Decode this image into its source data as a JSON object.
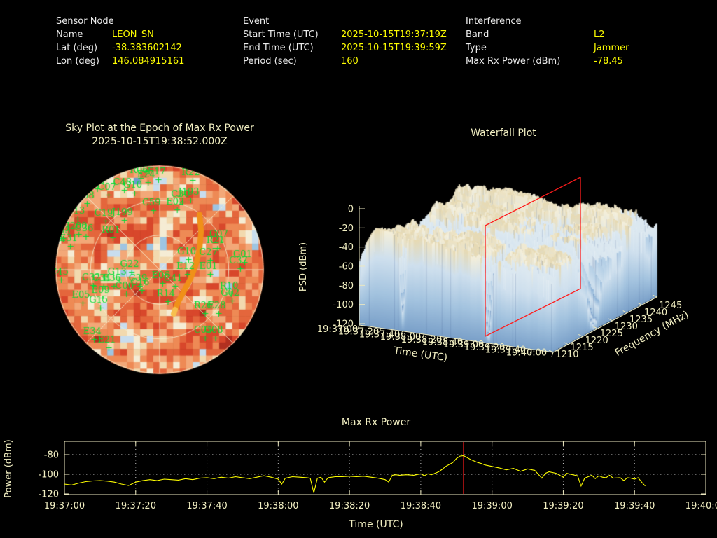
{
  "header": {
    "sensor": {
      "title": "Sensor Node",
      "rows": [
        {
          "label": "Name",
          "value": "LEON_SN"
        },
        {
          "label": "Lat (deg)",
          "value": "-38.383602142"
        },
        {
          "label": "Lon (deg)",
          "value": "146.084915161"
        }
      ]
    },
    "event": {
      "title": "Event",
      "rows": [
        {
          "label": "Start Time (UTC)",
          "value": "2025-10-15T19:37:19Z"
        },
        {
          "label": "End Time (UTC)",
          "value": "2025-10-15T19:39:59Z"
        },
        {
          "label": "Period (sec)",
          "value": "160"
        }
      ]
    },
    "interference": {
      "title": "Interference",
      "rows": [
        {
          "label": "Band",
          "value": "L2"
        },
        {
          "label": "Type",
          "value": "Jammer"
        },
        {
          "label": "Max Rx Power (dBm)",
          "value": "-78.45"
        }
      ]
    }
  },
  "colors": {
    "background": "#000000",
    "label_text": "#ebebeb",
    "value_text": "#fdfd00",
    "tick_text": "#f2efc2",
    "plot_border": "#ece8c0",
    "grid_dotted": "#c8c8c8",
    "series_line": "#fdfd00",
    "marker_red": "#ff1c1c",
    "satellite_green": "#00dc32",
    "track_orange": "#f09018",
    "track_end": "#f7bf4e",
    "sky_grid": "#f5efcf"
  },
  "chart_data": [
    {
      "type": "heatmap",
      "subtype": "polar_sky_plot",
      "title": "Sky Plot at the Epoch of Max Rx Power",
      "epoch": "2025-10-15T19:38:52.000Z",
      "elevation_rings": 3,
      "azimuth_spokes": 8,
      "palette": [
        "#b23020",
        "#d8472b",
        "#e4663c",
        "#ee8a55",
        "#f3a878",
        "#f2d9ae",
        "#f5ecd4",
        "#c8ddee",
        "#9ec5e2",
        "#6e9bcb",
        "#2d4f9e"
      ],
      "palette_thresholds": [
        0.1,
        0.3,
        0.45,
        0.58,
        0.68,
        0.76,
        0.83,
        0.89,
        0.95,
        0.985
      ],
      "satellites": [
        [
          "C25",
          -0.15,
          -1.0
        ],
        [
          "R06",
          -0.2,
          -0.93
        ],
        [
          "E17",
          -0.03,
          -0.92
        ],
        [
          "E24",
          -0.13,
          -0.89
        ],
        [
          "R22",
          0.3,
          -0.91
        ],
        [
          "C38",
          -0.62,
          -0.83
        ],
        [
          "C48",
          -0.36,
          -0.82
        ],
        [
          "G10",
          -0.26,
          -0.79
        ],
        [
          "C07",
          -0.51,
          -0.77
        ],
        [
          "J193",
          0.28,
          -0.72
        ],
        [
          "C30",
          0.2,
          -0.7
        ],
        [
          "C08",
          -0.72,
          -0.69
        ],
        [
          "E02",
          0.15,
          -0.63
        ],
        [
          "C59",
          -0.08,
          -0.62
        ],
        [
          "C13",
          -0.81,
          -0.54
        ],
        [
          "J199",
          -0.36,
          -0.53
        ],
        [
          "C19",
          -0.54,
          -0.52
        ],
        [
          "J200",
          -0.8,
          -0.39
        ],
        [
          "C36",
          -0.73,
          -0.37
        ],
        [
          "R01",
          -0.47,
          -0.36
        ],
        [
          "G03",
          -0.95,
          -0.35
        ],
        [
          "G07",
          0.57,
          -0.32
        ],
        [
          "E31",
          -0.88,
          -0.28
        ],
        [
          "R21",
          0.54,
          -0.26
        ],
        [
          "G10",
          0.26,
          -0.15
        ],
        [
          "C27",
          0.47,
          -0.14
        ],
        [
          "G01",
          0.8,
          -0.12
        ],
        [
          "C37",
          0.76,
          -0.06
        ],
        [
          "G22",
          -0.29,
          -0.03
        ],
        [
          "E12",
          0.25,
          -0.01
        ],
        [
          "E01",
          0.47,
          -0.01
        ],
        [
          "C45",
          -0.97,
          0.05
        ],
        [
          "G13",
          -0.41,
          0.05
        ],
        [
          "E06",
          0.01,
          0.08
        ],
        [
          "C32",
          -0.66,
          0.1
        ],
        [
          "C34",
          -0.56,
          0.11
        ],
        [
          "E36",
          -0.46,
          0.11
        ],
        [
          "C39",
          -0.21,
          0.11
        ],
        [
          "C41",
          0.13,
          0.11
        ],
        [
          "G16",
          -0.19,
          0.15
        ],
        [
          "C06",
          -0.34,
          0.18
        ],
        [
          "R10",
          0.67,
          0.18
        ],
        [
          "E09",
          -0.57,
          0.22
        ],
        [
          "G02",
          0.68,
          0.25
        ],
        [
          "R14",
          0.06,
          0.26
        ],
        [
          "E05",
          -0.76,
          0.27
        ],
        [
          "G15",
          -0.59,
          0.32
        ],
        [
          "R26",
          0.42,
          0.37
        ],
        [
          "E28",
          0.55,
          0.37
        ],
        [
          "C05",
          0.42,
          0.61
        ],
        [
          "G08",
          0.52,
          0.61
        ],
        [
          "E34",
          -0.65,
          0.62
        ],
        [
          "E21",
          -0.51,
          0.7
        ]
      ],
      "jammer_track": [
        [
          0.385,
          -0.53
        ],
        [
          0.4,
          -0.37
        ],
        [
          0.385,
          -0.2
        ],
        [
          0.35,
          -0.05
        ],
        [
          0.297,
          0.088
        ],
        [
          0.236,
          0.203
        ],
        [
          0.182,
          0.304
        ],
        [
          0.149,
          0.385
        ],
        [
          0.135,
          0.426
        ]
      ]
    },
    {
      "type": "area",
      "subtype": "3d_surface_waterfall",
      "title": "Waterfall Plot",
      "zlabel": "PSD (dBm)",
      "xlabel": "Time (UTC)",
      "ylabel": "Frequency (MHz)",
      "z_ticks_dbm": [
        0,
        -20,
        -40,
        -60,
        -80,
        -100,
        -120
      ],
      "x_ticks_time": [
        "19:37:00",
        "19:37:20",
        "19:37:40",
        "19:38:00",
        "19:38:20",
        "19:38:40",
        "19:39:00",
        "19:39:20",
        "19:39:40",
        "19:40:00"
      ],
      "y_ticks_mhz": [
        1210,
        1215,
        1220,
        1225,
        1230,
        1235,
        1240,
        1245
      ],
      "surface_psd_range_dbm": [
        -116,
        -18
      ],
      "slice_marker": {
        "time_utc": "19:38:52",
        "color": "#ff1c1c"
      },
      "surface_colors": {
        "top_high": [
          "#f5efd9",
          "#eee3c2",
          "#e8dab2",
          "#f2ead0"
        ],
        "mid": "#dde9f1",
        "low": "#b4cfe6",
        "lower": "#8fb4d8",
        "lowest": "#6f97c6",
        "face1": "#cfe0ee",
        "face2": "#a3c3df",
        "face3": "#7aa0c9"
      }
    },
    {
      "type": "line",
      "title": "Max Rx Power",
      "xlabel": "Time (UTC)",
      "ylabel": "Power (dBm)",
      "x_ticks": [
        "19:37:00",
        "19:37:20",
        "19:37:40",
        "19:38:00",
        "19:38:20",
        "19:38:40",
        "19:39:00",
        "19:39:20",
        "19:39:40",
        "19:40:00"
      ],
      "y_ticks": [
        -80,
        -100,
        -120
      ],
      "ylim": [
        -120,
        -76
      ],
      "x_range_sec": 180,
      "marker_sec": 112,
      "marker_time": "19:38:52",
      "points_sec": [
        0,
        2,
        4,
        6,
        8,
        10,
        12,
        14,
        16,
        18,
        20,
        22,
        24,
        26,
        28,
        30,
        32,
        34,
        36,
        38,
        40,
        42,
        44,
        46,
        48,
        50,
        52,
        54,
        56,
        58,
        60,
        61,
        62,
        64,
        66,
        68,
        69,
        70,
        71,
        72,
        73,
        74,
        76,
        78,
        80,
        82,
        84,
        86,
        88,
        90,
        91,
        92,
        93,
        94,
        96,
        98,
        100,
        101,
        102,
        103,
        104,
        105,
        106,
        107,
        108,
        109,
        110,
        111,
        112,
        113,
        114,
        115,
        116,
        117,
        118,
        120,
        122,
        124,
        126,
        128,
        130,
        132,
        134,
        135,
        136,
        138,
        140,
        141,
        142,
        144,
        145,
        146,
        148,
        149,
        150,
        151,
        152,
        153,
        154,
        156,
        157,
        158,
        159,
        160,
        161,
        162,
        163
      ],
      "points_dbm": [
        -110,
        -111,
        -109,
        -107.5,
        -106.8,
        -106.5,
        -107,
        -108,
        -110,
        -111.5,
        -108,
        -106.5,
        -105.5,
        -106.5,
        -105,
        -105.5,
        -106,
        -104.5,
        -105.5,
        -104,
        -103.5,
        -104.5,
        -103,
        -104,
        -102.5,
        -103.5,
        -104.5,
        -103,
        -101.5,
        -103,
        -105,
        -110,
        -104,
        -102.5,
        -103,
        -103.5,
        -104,
        -119,
        -104,
        -103,
        -108,
        -103.5,
        -102.5,
        -102.5,
        -102,
        -102.5,
        -102,
        -103,
        -104,
        -105.5,
        -108,
        -101,
        -100.5,
        -101,
        -100.5,
        -101,
        -99.5,
        -101.5,
        -99.5,
        -100.5,
        -99,
        -97.5,
        -95,
        -92,
        -90,
        -88,
        -84,
        -81.5,
        -81,
        -83,
        -85,
        -86.5,
        -88,
        -89,
        -90.5,
        -92,
        -93.5,
        -95.5,
        -94,
        -97,
        -94.5,
        -96,
        -104,
        -99,
        -97.5,
        -99,
        -103,
        -99,
        -100,
        -101.5,
        -112,
        -104,
        -101,
        -104.5,
        -101.5,
        -103,
        -103.5,
        -101,
        -104,
        -103.5,
        -106.5,
        -103.5,
        -104,
        -105,
        -103.5,
        -108,
        -112
      ]
    }
  ]
}
